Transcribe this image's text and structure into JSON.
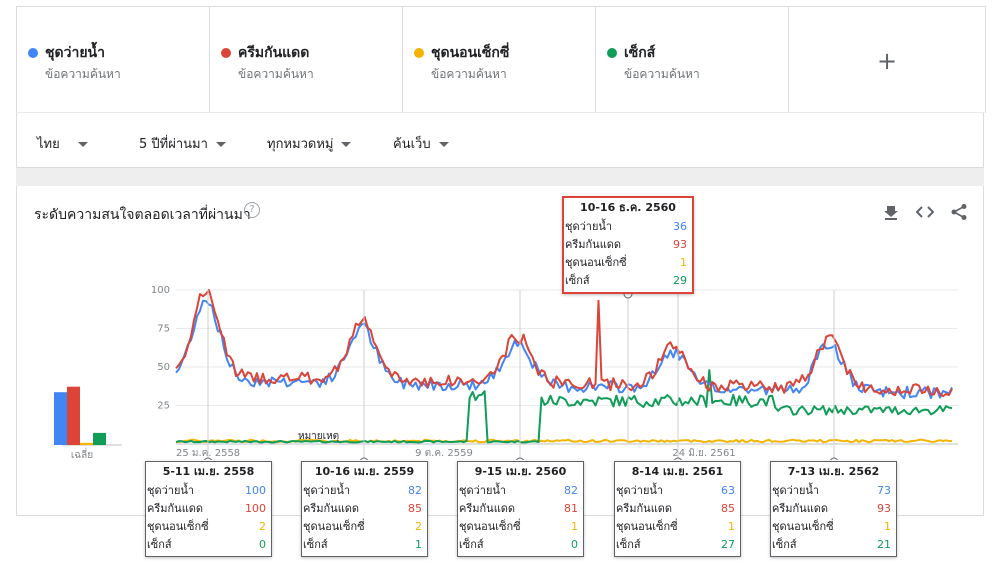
{
  "terms": [
    {
      "name": "ชุดว่ายน้ำ",
      "type": "ข้อความค้นหา",
      "color": "#4285f4"
    },
    {
      "name": "ครีมกันแดด",
      "type": "ข้อความค้นหา",
      "color": "#db4437"
    },
    {
      "name": "ชุดนอนเซ็กซี่",
      "type": "ข้อความค้นหา",
      "color": "#f4b400"
    },
    {
      "name": "เซ็กส์",
      "type": "ข้อความค้นหา",
      "color": "#0f9d58"
    }
  ],
  "add_term_symbol": "+",
  "filters": {
    "region": "ไทย",
    "time": "5 ปีที่ผ่านมา",
    "category": "ทุกหมวดหมู่",
    "property": "ค้นเว็บ"
  },
  "card": {
    "title": "ระดับความสนใจตลอดเวลาที่ผ่านมา",
    "help": "?"
  },
  "icons": {
    "download": "download-icon",
    "embed": "embed-code-icon",
    "share": "share-icon"
  },
  "average_label": "เฉลี่ย",
  "note_label": "หมายเหตุ",
  "chart_data": {
    "type": "line",
    "y_ticks": [
      "100",
      "75",
      "50",
      "25"
    ],
    "ylim": [
      0,
      100
    ],
    "x_tick_labels": [
      "25 ม.ค. 2558",
      "9 ต.ค. 2559",
      "24 มิ.ย. 2561"
    ],
    "averages": [
      48,
      53,
      2,
      11
    ],
    "series_names": [
      "ชุดว่ายน้ำ",
      "ครีมกันแดด",
      "ชุดนอนเซ็กซี่",
      "เซ็กส์"
    ],
    "colors": [
      "#4285f4",
      "#db4437",
      "#f4b400",
      "#0f9d58"
    ]
  },
  "tooltips": [
    {
      "date": "10-16 ธ.ค. 2560",
      "values": [
        "36",
        "93",
        "1",
        "29"
      ]
    },
    {
      "date": "5-11 เม.ย. 2558",
      "values": [
        "100",
        "100",
        "2",
        "0"
      ]
    },
    {
      "date": "10-16 เม.ย. 2559",
      "values": [
        "82",
        "85",
        "2",
        "1"
      ]
    },
    {
      "date": "9-15 เม.ย. 2560",
      "values": [
        "82",
        "81",
        "1",
        "0"
      ]
    },
    {
      "date": "8-14 เม.ย. 2561",
      "values": [
        "63",
        "85",
        "1",
        "27"
      ]
    },
    {
      "date": "7-13 เม.ย. 2562",
      "values": [
        "73",
        "93",
        "1",
        "21"
      ]
    }
  ]
}
